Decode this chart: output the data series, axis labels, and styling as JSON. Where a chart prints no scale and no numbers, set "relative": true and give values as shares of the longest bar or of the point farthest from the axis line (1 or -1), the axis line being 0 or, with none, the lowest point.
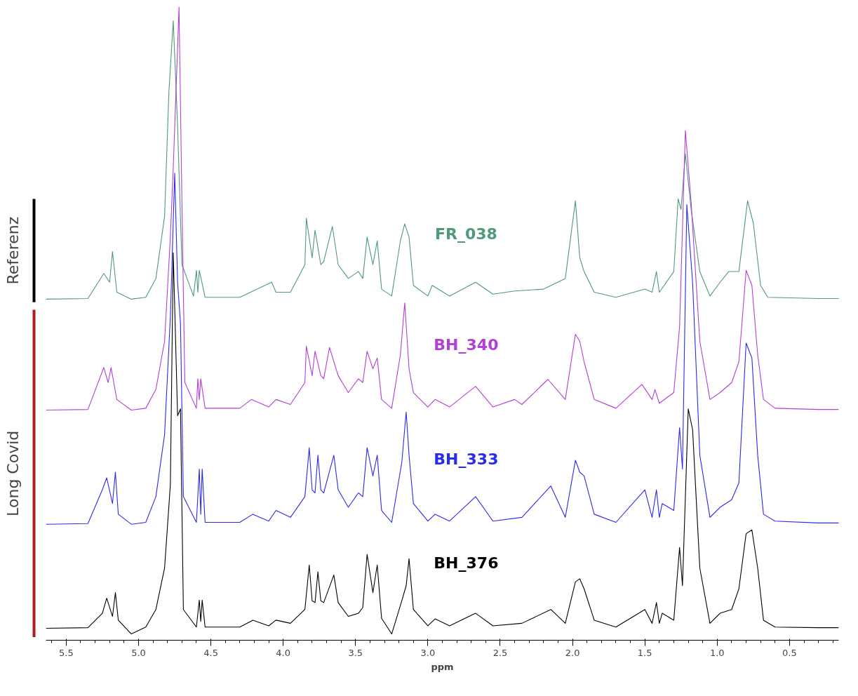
{
  "chart_data": {
    "type": "line",
    "relative": true,
    "xlabel": "ppm",
    "xlim": [
      5.64,
      0.16
    ],
    "xticks": [
      5.5,
      {
        "value": 5,
        "label": "5.0"
      },
      4.5,
      {
        "value": 4,
        "label": "4.0"
      },
      3.5,
      {
        "value": 3,
        "label": "3.0"
      },
      2.5,
      {
        "value": 2,
        "label": "2.0"
      },
      1.5,
      {
        "value": 1,
        "label": "1.0"
      },
      0.5
    ],
    "annotations": [
      "Referenz",
      "Long Covid"
    ],
    "series": [
      {
        "name": "FR_038",
        "color": "#4f9a78",
        "x": [
          5.64,
          5.35,
          5.24,
          5.2,
          5.18,
          5.15,
          5.05,
          4.95,
          4.88,
          4.82,
          4.79,
          4.76,
          4.73,
          4.7,
          4.62,
          4.6,
          4.59,
          4.58,
          4.54,
          4.3,
          4.08,
          4.05,
          3.95,
          3.85,
          3.84,
          3.8,
          3.78,
          3.74,
          3.72,
          3.66,
          3.62,
          3.55,
          3.48,
          3.45,
          3.42,
          3.38,
          3.35,
          3.32,
          3.25,
          3.19,
          3.16,
          3.13,
          3.1,
          3.0,
          2.97,
          2.85,
          2.67,
          2.55,
          2.4,
          2.2,
          2.05,
          1.98,
          1.95,
          1.92,
          1.85,
          1.7,
          1.5,
          1.45,
          1.42,
          1.4,
          1.3,
          1.27,
          1.25,
          1.22,
          1.18,
          1.12,
          1.05,
          0.98,
          0.92,
          0.85,
          0.79,
          0.75,
          0.7,
          0.65,
          0.3,
          0.16
        ],
        "values": [
          0.534,
          0.535,
          0.575,
          0.561,
          0.61,
          0.545,
          0.534,
          0.537,
          0.567,
          0.666,
          0.865,
          0.978,
          0.81,
          0.589,
          0.539,
          0.58,
          0.545,
          0.58,
          0.537,
          0.537,
          0.561,
          0.545,
          0.545,
          0.589,
          0.663,
          0.6,
          0.644,
          0.589,
          0.594,
          0.65,
          0.589,
          0.567,
          0.578,
          0.567,
          0.633,
          0.589,
          0.627,
          0.55,
          0.539,
          0.627,
          0.654,
          0.633,
          0.556,
          0.539,
          0.556,
          0.539,
          0.561,
          0.542,
          0.547,
          0.55,
          0.567,
          0.691,
          0.6,
          0.578,
          0.545,
          0.537,
          0.55,
          0.545,
          0.578,
          0.545,
          0.578,
          0.694,
          0.677,
          0.766,
          0.677,
          0.578,
          0.539,
          0.561,
          0.578,
          0.578,
          0.691,
          0.655,
          0.556,
          0.537,
          0.535,
          0.535
        ]
      },
      {
        "name": "BH_340",
        "color": "#b23fd6",
        "x": [
          5.64,
          5.35,
          5.24,
          5.21,
          5.19,
          5.15,
          5.05,
          4.95,
          4.88,
          4.82,
          4.78,
          4.76,
          4.72,
          4.7,
          4.68,
          4.6,
          4.59,
          4.58,
          4.57,
          4.54,
          4.3,
          4.22,
          4.1,
          4.05,
          3.95,
          3.85,
          3.84,
          3.8,
          3.78,
          3.74,
          3.72,
          3.68,
          3.62,
          3.55,
          3.48,
          3.45,
          3.42,
          3.38,
          3.35,
          3.32,
          3.25,
          3.19,
          3.16,
          3.13,
          3.1,
          3.0,
          2.95,
          2.85,
          2.67,
          2.55,
          2.4,
          2.35,
          2.17,
          2.05,
          1.98,
          1.95,
          1.92,
          1.85,
          1.7,
          1.52,
          1.45,
          1.43,
          1.4,
          1.3,
          1.26,
          1.22,
          1.18,
          1.12,
          1.05,
          0.98,
          0.9,
          0.85,
          0.8,
          0.76,
          0.72,
          0.68,
          0.6,
          0.3,
          0.16
        ],
        "values": [
          0.357,
          0.358,
          0.425,
          0.401,
          0.425,
          0.374,
          0.357,
          0.36,
          0.39,
          0.467,
          0.633,
          0.744,
          1.0,
          0.688,
          0.401,
          0.36,
          0.407,
          0.374,
          0.407,
          0.36,
          0.36,
          0.374,
          0.362,
          0.374,
          0.366,
          0.401,
          0.459,
          0.412,
          0.451,
          0.412,
          0.407,
          0.457,
          0.412,
          0.385,
          0.407,
          0.401,
          0.451,
          0.423,
          0.44,
          0.374,
          0.36,
          0.445,
          0.528,
          0.423,
          0.385,
          0.362,
          0.374,
          0.362,
          0.395,
          0.362,
          0.374,
          0.366,
          0.406,
          0.374,
          0.478,
          0.467,
          0.434,
          0.374,
          0.36,
          0.398,
          0.374,
          0.39,
          0.368,
          0.385,
          0.49,
          0.803,
          0.688,
          0.467,
          0.374,
          0.385,
          0.401,
          0.434,
          0.58,
          0.556,
          0.445,
          0.374,
          0.36,
          0.358,
          0.358
        ]
      },
      {
        "name": "BH_333",
        "color": "#2a2af0",
        "x": [
          5.64,
          5.35,
          5.25,
          5.22,
          5.18,
          5.16,
          5.14,
          5.05,
          4.95,
          4.88,
          4.82,
          4.78,
          4.75,
          4.73,
          4.71,
          4.69,
          4.6,
          4.58,
          4.57,
          4.56,
          4.54,
          4.3,
          4.21,
          4.1,
          4.05,
          3.95,
          3.85,
          3.82,
          3.8,
          3.78,
          3.76,
          3.74,
          3.72,
          3.65,
          3.62,
          3.55,
          3.48,
          3.45,
          3.42,
          3.38,
          3.35,
          3.32,
          3.25,
          3.18,
          3.15,
          3.13,
          3.1,
          3.0,
          2.95,
          2.85,
          2.67,
          2.55,
          2.35,
          2.15,
          2.05,
          1.98,
          1.95,
          1.92,
          1.85,
          1.7,
          1.5,
          1.45,
          1.42,
          1.4,
          1.38,
          1.3,
          1.26,
          1.24,
          1.21,
          1.17,
          1.12,
          1.05,
          0.98,
          0.9,
          0.85,
          0.8,
          0.76,
          0.72,
          0.68,
          0.6,
          0.3,
          0.16
        ],
        "values": [
          0.175,
          0.176,
          0.23,
          0.249,
          0.208,
          0.258,
          0.191,
          0.175,
          0.178,
          0.219,
          0.318,
          0.506,
          0.735,
          0.561,
          0.495,
          0.219,
          0.178,
          0.263,
          0.191,
          0.263,
          0.178,
          0.178,
          0.191,
          0.18,
          0.197,
          0.186,
          0.219,
          0.297,
          0.23,
          0.225,
          0.285,
          0.23,
          0.225,
          0.285,
          0.23,
          0.202,
          0.225,
          0.219,
          0.297,
          0.252,
          0.285,
          0.197,
          0.178,
          0.274,
          0.354,
          0.285,
          0.208,
          0.18,
          0.191,
          0.18,
          0.219,
          0.18,
          0.186,
          0.236,
          0.186,
          0.277,
          0.258,
          0.252,
          0.191,
          0.178,
          0.23,
          0.186,
          0.23,
          0.186,
          0.208,
          0.197,
          0.329,
          0.263,
          0.685,
          0.561,
          0.285,
          0.186,
          0.202,
          0.214,
          0.241,
          0.464,
          0.44,
          0.285,
          0.191,
          0.18,
          0.177,
          0.177
        ]
      },
      {
        "name": "BH_376",
        "color": "#000000",
        "x": [
          5.64,
          5.35,
          5.25,
          5.22,
          5.18,
          5.16,
          5.14,
          5.05,
          4.95,
          4.88,
          4.82,
          4.78,
          4.76,
          4.73,
          4.71,
          4.69,
          4.6,
          4.58,
          4.57,
          4.56,
          4.54,
          4.3,
          4.21,
          4.1,
          4.05,
          3.95,
          3.85,
          3.82,
          3.8,
          3.78,
          3.76,
          3.74,
          3.72,
          3.65,
          3.62,
          3.55,
          3.48,
          3.45,
          3.42,
          3.38,
          3.35,
          3.32,
          3.25,
          3.18,
          3.15,
          3.13,
          3.1,
          3.0,
          2.95,
          2.85,
          2.67,
          2.55,
          2.35,
          2.15,
          2.05,
          1.98,
          1.95,
          1.92,
          1.85,
          1.7,
          1.5,
          1.45,
          1.42,
          1.4,
          1.38,
          1.3,
          1.26,
          1.24,
          1.2,
          1.17,
          1.12,
          1.05,
          0.98,
          0.9,
          0.85,
          0.8,
          0.76,
          0.72,
          0.68,
          0.6,
          0.3,
          0.16
        ],
        "values": [
          0.009,
          0.01,
          0.033,
          0.057,
          0.028,
          0.066,
          0.022,
          0.0,
          0.011,
          0.039,
          0.105,
          0.238,
          0.608,
          0.348,
          0.359,
          0.039,
          0.011,
          0.054,
          0.02,
          0.054,
          0.011,
          0.011,
          0.022,
          0.013,
          0.022,
          0.017,
          0.039,
          0.11,
          0.053,
          0.05,
          0.099,
          0.053,
          0.05,
          0.094,
          0.05,
          0.028,
          0.033,
          0.042,
          0.127,
          0.066,
          0.11,
          0.025,
          0.0,
          0.053,
          0.077,
          0.12,
          0.039,
          0.013,
          0.024,
          0.013,
          0.033,
          0.013,
          0.017,
          0.039,
          0.017,
          0.083,
          0.088,
          0.072,
          0.022,
          0.011,
          0.039,
          0.017,
          0.05,
          0.017,
          0.033,
          0.022,
          0.138,
          0.077,
          0.359,
          0.326,
          0.105,
          0.017,
          0.033,
          0.039,
          0.072,
          0.16,
          0.166,
          0.105,
          0.022,
          0.011,
          0.01,
          0.01
        ]
      }
    ]
  }
}
